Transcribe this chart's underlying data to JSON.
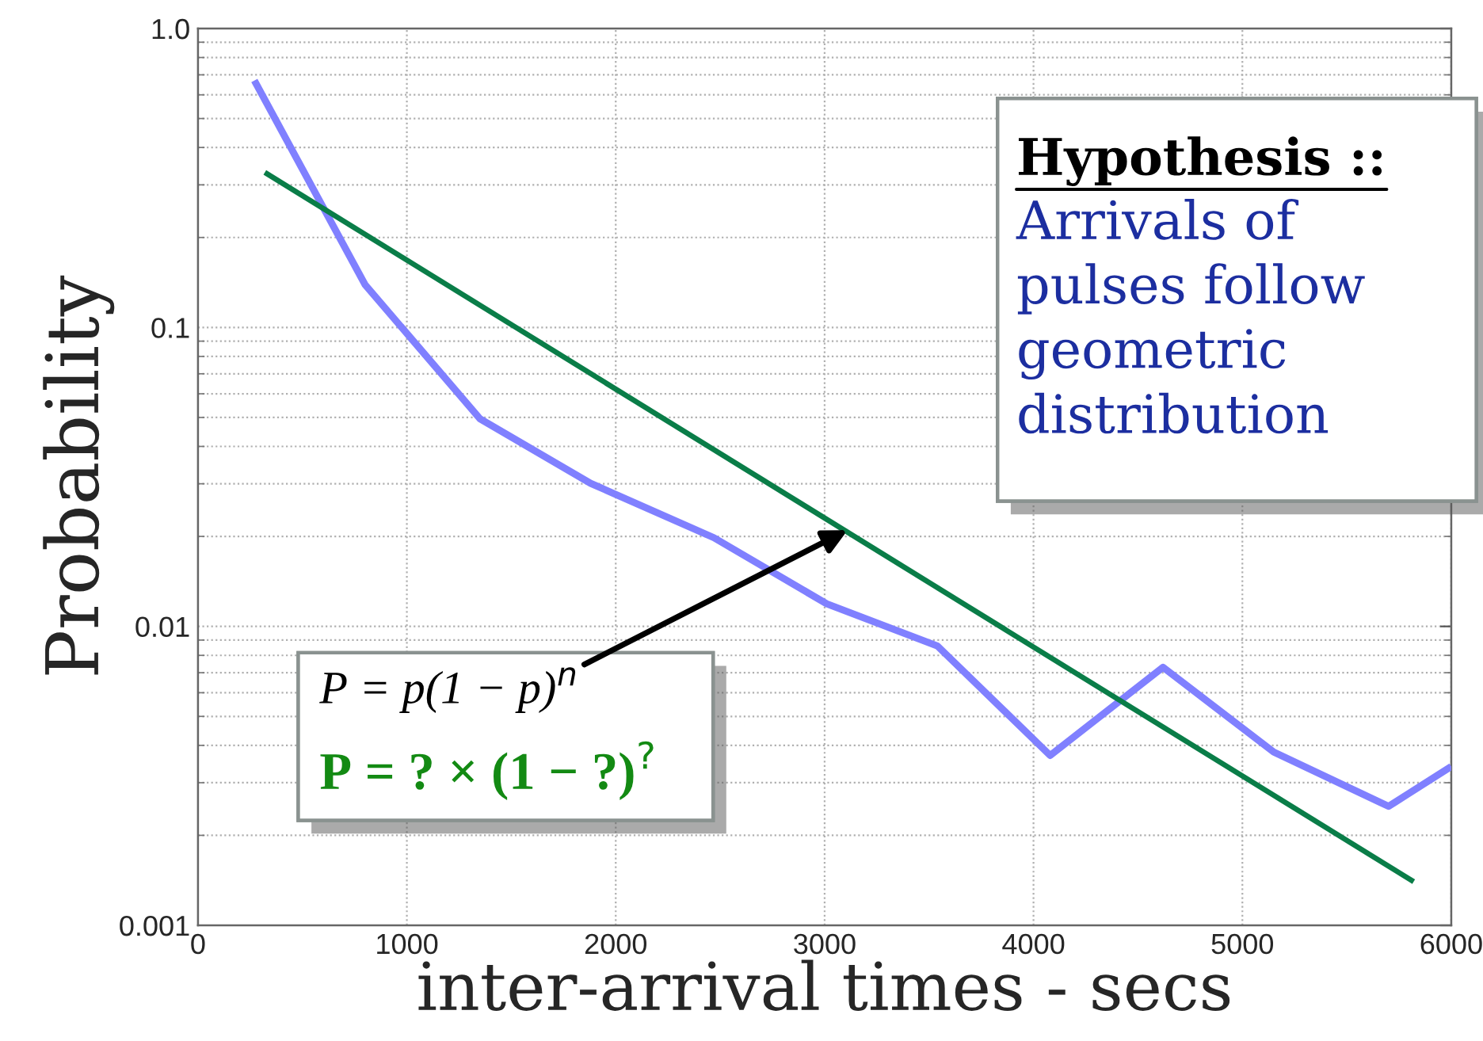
{
  "chart_data": {
    "type": "line",
    "xlabel": "inter-arrival times - secs",
    "ylabel": "Probability",
    "series": [
      {
        "color": "#8080ff",
        "x": [
          270,
          800,
          1350,
          1880,
          2470,
          3010,
          3540,
          4080,
          4620,
          5150,
          5700,
          6000
        ],
        "values": [
          0.67,
          0.139,
          0.0495,
          0.0301,
          0.0198,
          0.0119,
          0.0086,
          0.0037,
          0.0073,
          0.0038,
          0.0025,
          0.0034
        ]
      },
      {
        "color": "#0a7d48",
        "x": [
          320,
          5820
        ],
        "values": [
          0.33,
          0.0014
        ]
      }
    ],
    "xlim": [
      0,
      6000
    ],
    "xticks": [
      0,
      1000,
      2000,
      3000,
      4000,
      5000,
      6000
    ],
    "ylim": [
      0.001,
      1
    ],
    "yticks": [
      0.001,
      0.01,
      0.1,
      {
        "value": 1,
        "label": "1.0"
      }
    ],
    "log": true,
    "grid": true,
    "annotations": [
      "Hypothesis ::",
      "Arrivals of\npulses follow\ngeometric\ndistribution",
      {
        "text": "P = p(1 − p)$^{n}$",
        "x": 3110,
        "y": 0.021
      },
      "P = ? × (1 − ?)$^{?}$"
    ]
  }
}
